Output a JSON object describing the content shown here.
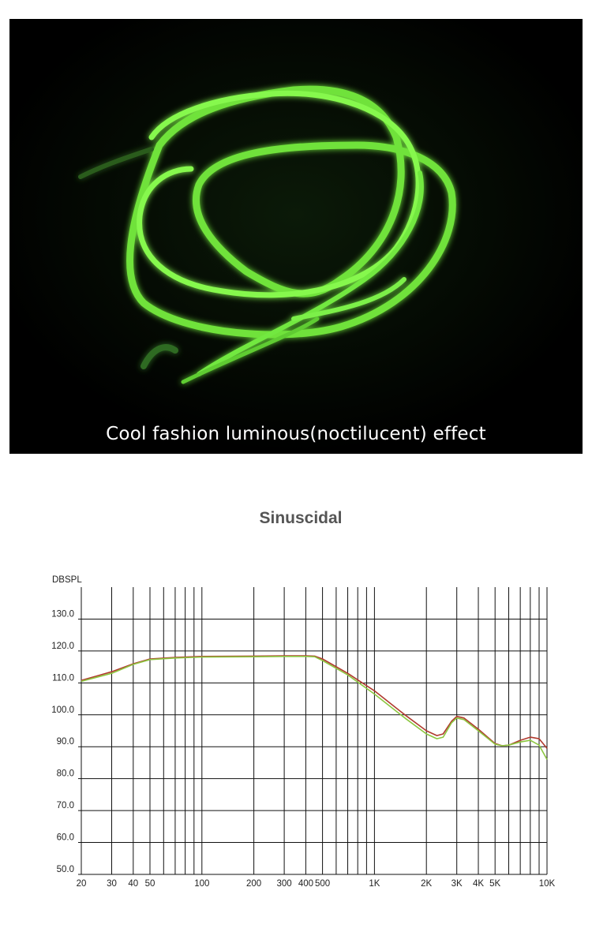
{
  "photo": {
    "caption": "Cool fashion luminous(noctilucent) effect",
    "glow_color": "#7dff3c",
    "background_color": "#000000"
  },
  "chart_data": {
    "type": "line",
    "title": "Sinuscidal",
    "ylabel": "DBSPL",
    "xlabel": "",
    "x_scale": "log",
    "xlim": [
      20,
      10000
    ],
    "ylim": [
      50,
      140
    ],
    "grid": true,
    "y_ticks": [
      50,
      60,
      70,
      80,
      90,
      100,
      110,
      120,
      130
    ],
    "y_tick_labels": [
      "50.0",
      "60.0",
      "70.0",
      "80.0",
      "90.0",
      "100.0",
      "110.0",
      "120.0",
      "130.0"
    ],
    "x_ticks": [
      20,
      30,
      40,
      50,
      100,
      200,
      300,
      400,
      500,
      1000,
      2000,
      3000,
      4000,
      5000,
      10000
    ],
    "x_tick_labels": [
      "20",
      "30",
      "40",
      "50",
      "100",
      "200",
      "300",
      "400",
      "500",
      "1K",
      "2K",
      "3K",
      "4K",
      "5K",
      "10K"
    ],
    "series": [
      {
        "color": "#b03a2e",
        "x": [
          20,
          30,
          40,
          50,
          70,
          100,
          200,
          300,
          400,
          450,
          500,
          700,
          1000,
          1500,
          2000,
          2300,
          2500,
          2800,
          3000,
          3300,
          4000,
          5000,
          5500,
          6000,
          7000,
          8000,
          9000,
          10000
        ],
        "y": [
          110.8,
          113.5,
          116,
          117.5,
          118.0,
          118.3,
          118.4,
          118.5,
          118.5,
          118.4,
          117.5,
          113,
          107.5,
          100,
          95,
          93.5,
          94,
          98,
          99.5,
          99,
          95.5,
          91,
          90.3,
          90.5,
          92,
          93,
          92.5,
          89.5
        ]
      },
      {
        "color": "#8cc63f",
        "x": [
          20,
          30,
          40,
          50,
          70,
          100,
          200,
          300,
          400,
          450,
          500,
          700,
          1000,
          1500,
          2000,
          2300,
          2500,
          2800,
          3000,
          3300,
          4000,
          5000,
          5500,
          6000,
          7000,
          8000,
          9000,
          10000
        ],
        "y": [
          110.5,
          113,
          115.8,
          117.3,
          117.8,
          118.1,
          118.2,
          118.3,
          118.3,
          118.2,
          117.0,
          112.5,
          106.5,
          99,
          94,
          92.5,
          93,
          97.5,
          99,
          98.5,
          95,
          90.8,
          90.3,
          90.5,
          91.5,
          92,
          90.5,
          86
        ]
      }
    ]
  }
}
